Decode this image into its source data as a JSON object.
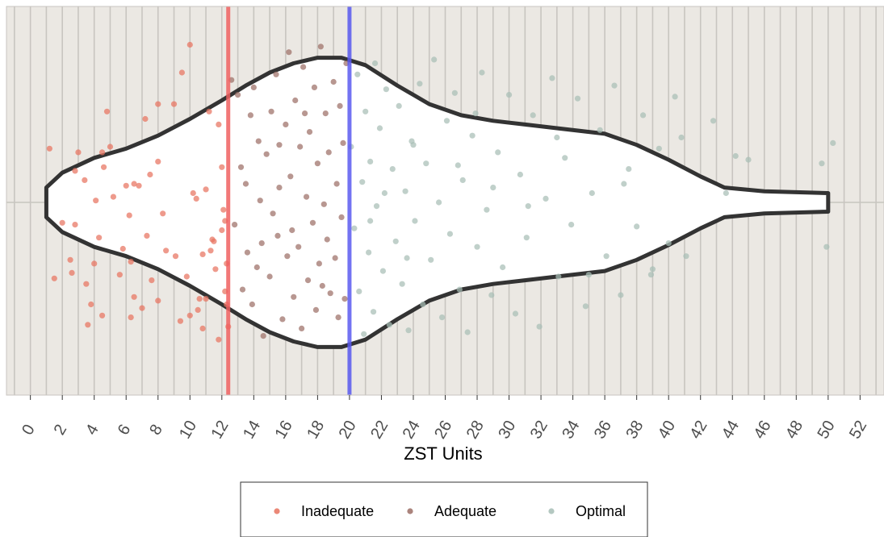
{
  "chart_data": {
    "type": "scatter",
    "subtype": "violin-with-jitter",
    "title": "",
    "xlabel": "ZST Units",
    "ylabel": "",
    "xlim": [
      -1.5,
      53.5
    ],
    "x_ticks": [
      0,
      2,
      4,
      6,
      8,
      10,
      12,
      14,
      16,
      18,
      20,
      22,
      24,
      26,
      28,
      30,
      32,
      34,
      36,
      38,
      40,
      42,
      44,
      46,
      48,
      50,
      52
    ],
    "grid": "vertical lines at every unit; single horizontal center line",
    "legend_position": "bottom",
    "colors": {
      "panel_background": "#ebe8e3",
      "grid": "#c8c5c0",
      "violin_fill": "#ffffff",
      "violin_outline": "#333333",
      "inadequate": "#e8735f",
      "adequate": "#9c6f66",
      "optimal": "#a7beb6",
      "threshold_low": "#f06060",
      "threshold_high": "#5a5af0"
    },
    "reference_lines": [
      {
        "x": 12.4,
        "color": "#f06060"
      },
      {
        "x": 20.0,
        "color": "#5a5af0"
      }
    ],
    "violin_outline_halfwidth": [
      [
        1.0,
        0.08
      ],
      [
        2.0,
        0.16
      ],
      [
        4.0,
        0.24
      ],
      [
        6.0,
        0.29
      ],
      [
        8.0,
        0.36
      ],
      [
        10.0,
        0.45
      ],
      [
        12.0,
        0.55
      ],
      [
        13.5,
        0.63
      ],
      [
        15.0,
        0.7
      ],
      [
        16.5,
        0.75
      ],
      [
        18.0,
        0.78
      ],
      [
        19.5,
        0.78
      ],
      [
        21.0,
        0.74
      ],
      [
        23.0,
        0.63
      ],
      [
        25.0,
        0.53
      ],
      [
        27.0,
        0.47
      ],
      [
        29.0,
        0.44
      ],
      [
        31.0,
        0.42
      ],
      [
        33.0,
        0.4
      ],
      [
        36.0,
        0.37
      ],
      [
        38.0,
        0.31
      ],
      [
        40.0,
        0.23
      ],
      [
        42.0,
        0.14
      ],
      [
        43.5,
        0.08
      ],
      [
        46.0,
        0.06
      ],
      [
        50.0,
        0.05
      ]
    ],
    "series": [
      {
        "name": "Inadequate",
        "color": "#e8735f",
        "points": [
          [
            1.2,
            0.29
          ],
          [
            1.5,
            -0.41
          ],
          [
            2.8,
            0.17
          ],
          [
            2.0,
            -0.11
          ],
          [
            2.8,
            -0.12
          ],
          [
            2.6,
            -0.38
          ],
          [
            3.4,
            0.12
          ],
          [
            3.5,
            -0.44
          ],
          [
            3.6,
            -0.66
          ],
          [
            3.8,
            -0.55
          ],
          [
            4.0,
            -0.33
          ],
          [
            4.1,
            0.01
          ],
          [
            4.3,
            -0.19
          ],
          [
            4.5,
            -0.61
          ],
          [
            4.6,
            0.19
          ],
          [
            5.2,
            0.03
          ],
          [
            5.6,
            -0.39
          ],
          [
            5.8,
            -0.25
          ],
          [
            6.2,
            -0.07
          ],
          [
            6.0,
            0.09
          ],
          [
            6.3,
            -0.32
          ],
          [
            6.5,
            -0.51
          ],
          [
            6.8,
            0.09
          ],
          [
            7.0,
            -0.57
          ],
          [
            7.3,
            -0.18
          ],
          [
            7.6,
            -0.42
          ],
          [
            8.0,
            -0.53
          ],
          [
            8.0,
            0.53
          ],
          [
            8.3,
            -0.06
          ],
          [
            8.5,
            -0.26
          ],
          [
            9.1,
            -0.29
          ],
          [
            9.4,
            -0.64
          ],
          [
            9.8,
            -0.4
          ],
          [
            10.0,
            -0.61
          ],
          [
            10.2,
            0.05
          ],
          [
            10.4,
            0.02
          ],
          [
            10.6,
            -0.52
          ],
          [
            10.8,
            -0.28
          ],
          [
            11.0,
            0.07
          ],
          [
            11.2,
            0.49
          ],
          [
            11.4,
            -0.2
          ],
          [
            11.6,
            -0.36
          ],
          [
            11.8,
            -0.74
          ],
          [
            12.0,
            -0.15
          ],
          [
            12.1,
            -0.04
          ],
          [
            12.2,
            -0.48
          ],
          [
            12.3,
            -0.33
          ],
          [
            12.4,
            -0.67
          ],
          [
            9.0,
            0.53
          ],
          [
            7.5,
            0.15
          ],
          [
            5.0,
            0.3
          ],
          [
            4.8,
            0.49
          ],
          [
            6.5,
            0.1
          ],
          [
            9.5,
            0.7
          ],
          [
            10.0,
            0.85
          ],
          [
            8.0,
            0.22
          ],
          [
            10.8,
            -0.68
          ],
          [
            12.2,
            -0.1
          ],
          [
            11.5,
            -0.21
          ],
          [
            3.0,
            0.27
          ],
          [
            7.2,
            0.45
          ],
          [
            11.8,
            0.42
          ],
          [
            11.3,
            -0.26
          ],
          [
            10.5,
            -0.58
          ],
          [
            12.0,
            0.19
          ],
          [
            6.3,
            -0.62
          ],
          [
            4.5,
            0.27
          ],
          [
            2.5,
            -0.31
          ],
          [
            11.0,
            -0.52
          ],
          [
            12.3,
            -0.55
          ]
        ]
      },
      {
        "name": "Adequate",
        "color": "#9c6f66",
        "points": [
          [
            12.6,
            0.66
          ],
          [
            12.8,
            -0.12
          ],
          [
            13.0,
            0.58
          ],
          [
            13.2,
            0.19
          ],
          [
            13.3,
            -0.47
          ],
          [
            13.5,
            0.1
          ],
          [
            13.6,
            -0.27
          ],
          [
            13.8,
            0.47
          ],
          [
            13.9,
            -0.55
          ],
          [
            14.0,
            0.62
          ],
          [
            14.2,
            -0.35
          ],
          [
            14.3,
            0.33
          ],
          [
            14.4,
            0.01
          ],
          [
            14.6,
            -0.72
          ],
          [
            14.8,
            0.26
          ],
          [
            15.0,
            -0.4
          ],
          [
            15.1,
            0.49
          ],
          [
            15.2,
            -0.06
          ],
          [
            15.4,
            0.69
          ],
          [
            15.5,
            -0.18
          ],
          [
            15.6,
            0.08
          ],
          [
            15.8,
            -0.63
          ],
          [
            16.0,
            0.42
          ],
          [
            16.1,
            -0.29
          ],
          [
            16.2,
            0.81
          ],
          [
            16.3,
            0.14
          ],
          [
            16.5,
            -0.51
          ],
          [
            16.6,
            0.55
          ],
          [
            16.8,
            -0.24
          ],
          [
            16.9,
            0.3
          ],
          [
            17.0,
            -0.68
          ],
          [
            17.1,
            0.73
          ],
          [
            17.3,
            0.03
          ],
          [
            17.4,
            -0.42
          ],
          [
            17.5,
            0.38
          ],
          [
            17.7,
            -0.11
          ],
          [
            17.8,
            0.62
          ],
          [
            17.9,
            -0.58
          ],
          [
            18.0,
            0.21
          ],
          [
            18.1,
            -0.33
          ],
          [
            18.2,
            0.84
          ],
          [
            18.4,
            -0.01
          ],
          [
            18.5,
            0.48
          ],
          [
            18.6,
            -0.2
          ],
          [
            18.7,
            0.27
          ],
          [
            18.8,
            -0.49
          ],
          [
            19.0,
            0.65
          ],
          [
            19.1,
            -0.3
          ],
          [
            19.2,
            0.1
          ],
          [
            19.3,
            -0.62
          ],
          [
            19.4,
            0.52
          ],
          [
            19.5,
            -0.08
          ],
          [
            19.6,
            0.32
          ],
          [
            19.7,
            -0.52
          ],
          [
            19.8,
            0.75
          ],
          [
            14.5,
            -0.22
          ],
          [
            15.6,
            0.31
          ],
          [
            16.4,
            -0.15
          ],
          [
            17.2,
            0.48
          ],
          [
            18.3,
            -0.45
          ]
        ]
      },
      {
        "name": "Optimal",
        "color": "#a7beb6",
        "points": [
          [
            20.1,
            0.3
          ],
          [
            20.3,
            -0.14
          ],
          [
            20.5,
            0.69
          ],
          [
            20.6,
            -0.48
          ],
          [
            20.8,
            0.11
          ],
          [
            20.9,
            -0.71
          ],
          [
            21.0,
            0.49
          ],
          [
            21.2,
            -0.27
          ],
          [
            21.3,
            0.22
          ],
          [
            21.5,
            -0.59
          ],
          [
            21.6,
            0.75
          ],
          [
            21.7,
            -0.02
          ],
          [
            21.9,
            0.4
          ],
          [
            22.1,
            -0.37
          ],
          [
            22.3,
            0.61
          ],
          [
            22.5,
            -0.66
          ],
          [
            22.7,
            0.18
          ],
          [
            22.9,
            -0.21
          ],
          [
            23.1,
            0.52
          ],
          [
            23.3,
            -0.44
          ],
          [
            23.5,
            0.06
          ],
          [
            23.7,
            -0.69
          ],
          [
            23.9,
            0.33
          ],
          [
            24.1,
            -0.1
          ],
          [
            24.4,
            0.64
          ],
          [
            24.6,
            -0.55
          ],
          [
            24.8,
            0.21
          ],
          [
            25.1,
            -0.31
          ],
          [
            25.3,
            0.77
          ],
          [
            25.6,
            0.0
          ],
          [
            25.8,
            -0.62
          ],
          [
            26.1,
            0.44
          ],
          [
            26.3,
            -0.17
          ],
          [
            26.6,
            0.59
          ],
          [
            26.9,
            -0.47
          ],
          [
            27.1,
            0.12
          ],
          [
            27.4,
            -0.7
          ],
          [
            27.7,
            0.36
          ],
          [
            28.0,
            -0.24
          ],
          [
            28.3,
            0.7
          ],
          [
            28.6,
            -0.04
          ],
          [
            28.9,
            -0.5
          ],
          [
            29.3,
            0.27
          ],
          [
            29.6,
            -0.35
          ],
          [
            30.0,
            0.58
          ],
          [
            30.4,
            -0.6
          ],
          [
            30.7,
            0.15
          ],
          [
            31.1,
            -0.19
          ],
          [
            31.5,
            0.47
          ],
          [
            31.9,
            -0.67
          ],
          [
            32.3,
            0.02
          ],
          [
            32.7,
            0.67
          ],
          [
            33.1,
            -0.4
          ],
          [
            33.5,
            0.24
          ],
          [
            33.9,
            -0.12
          ],
          [
            34.3,
            0.56
          ],
          [
            34.8,
            -0.56
          ],
          [
            35.2,
            0.05
          ],
          [
            35.7,
            0.39
          ],
          [
            36.1,
            -0.29
          ],
          [
            36.6,
            0.63
          ],
          [
            37.0,
            -0.5
          ],
          [
            37.5,
            0.18
          ],
          [
            38.0,
            -0.13
          ],
          [
            38.4,
            0.47
          ],
          [
            38.9,
            -0.39
          ],
          [
            39.4,
            0.29
          ],
          [
            40.0,
            -0.22
          ],
          [
            40.4,
            0.57
          ],
          [
            40.8,
            0.35
          ],
          [
            41.1,
            -0.29
          ],
          [
            42.8,
            0.44
          ],
          [
            43.6,
            0.05
          ],
          [
            44.2,
            0.25
          ],
          [
            45.0,
            0.23
          ],
          [
            49.6,
            0.21
          ],
          [
            49.9,
            -0.24
          ],
          [
            50.3,
            0.32
          ],
          [
            22.2,
            0.05
          ],
          [
            24.0,
            0.31
          ],
          [
            26.8,
            0.2
          ],
          [
            29.0,
            0.08
          ],
          [
            31.2,
            -0.02
          ],
          [
            33.0,
            0.35
          ],
          [
            35.0,
            -0.39
          ],
          [
            37.2,
            0.1
          ],
          [
            39.0,
            -0.36
          ],
          [
            21.3,
            -0.1
          ],
          [
            23.6,
            -0.3
          ],
          [
            27.9,
            0.48
          ]
        ]
      }
    ]
  },
  "legend": {
    "items": [
      {
        "label": "Inadequate",
        "color": "#e8735f"
      },
      {
        "label": "Adequate",
        "color": "#9c6f66"
      },
      {
        "label": "Optimal",
        "color": "#a7beb6"
      }
    ]
  }
}
